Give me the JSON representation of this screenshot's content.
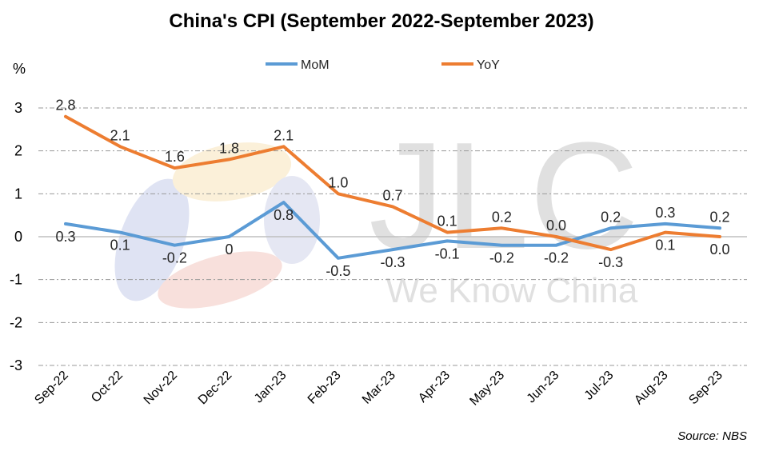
{
  "chart_data": {
    "type": "line",
    "title": "China's CPI (September 2022-September 2023)",
    "ylabel": "%",
    "ylim": [
      -3,
      3
    ],
    "yticks": [
      3,
      2,
      1,
      0,
      -1,
      -2,
      -3
    ],
    "categories": [
      "Sep-22",
      "Oct-22",
      "Nov-22",
      "Dec-22",
      "Jan-23",
      "Feb-23",
      "Mar-23",
      "Apr-23",
      "May-23",
      "Jun-23",
      "Jul-23",
      "Aug-23",
      "Sep-23"
    ],
    "series": [
      {
        "name": "MoM",
        "color": "#5b9bd5",
        "values": [
          0.3,
          0.1,
          -0.2,
          0,
          0.8,
          -0.5,
          -0.3,
          -0.1,
          -0.2,
          -0.2,
          0.2,
          0.3,
          0.2
        ],
        "labels": [
          "0.3",
          "0.1",
          "-0.2",
          "0",
          "0.8",
          "-0.5",
          "-0.3",
          "-0.1",
          "-0.2",
          "-0.2",
          "0.2",
          "0.3",
          "0.2"
        ]
      },
      {
        "name": "YoY",
        "color": "#ed7d31",
        "values": [
          2.8,
          2.1,
          1.6,
          1.8,
          2.1,
          1.0,
          0.7,
          0.1,
          0.2,
          0.0,
          -0.3,
          0.1,
          0.0
        ],
        "labels": [
          "2.8",
          "2.1",
          "1.6",
          "1.8",
          "2.1",
          "1.0",
          "0.7",
          "0.1",
          "0.2",
          "0.0",
          "-0.3",
          "0.1",
          "0.0"
        ]
      }
    ],
    "grid": true,
    "legend_position": "top-center"
  },
  "source": "Source: NBS",
  "watermark": {
    "logo_text": "JLC",
    "tagline": "We Know China"
  }
}
